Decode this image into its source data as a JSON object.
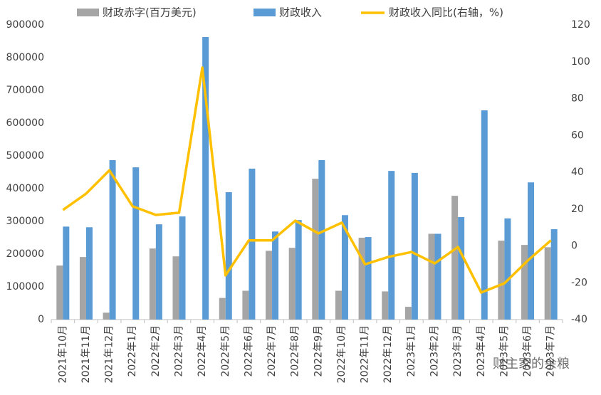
{
  "chart_data": {
    "type": "bar_line",
    "categories": [
      "2021年10月",
      "2021年11月",
      "2021年12月",
      "2022年1月",
      "2022年2月",
      "2022年3月",
      "2022年4月",
      "2022年5月",
      "2022年6月",
      "2022年7月",
      "2022年8月",
      "2022年9月",
      "2022年10月",
      "2022年11月",
      "2022年12月",
      "2023年1月",
      "2023年2月",
      "2023年3月",
      "2023年4月",
      "2023年5月",
      "2023年6月",
      "2023年7月"
    ],
    "series": [
      {
        "name": "财政赤字(百万美元)",
        "color": "#a5a5a5",
        "type": "bar",
        "values": [
          165000,
          191000,
          21000,
          null,
          217000,
          193000,
          null,
          66000,
          88000,
          210000,
          219000,
          430000,
          88000,
          250000,
          86000,
          39000,
          262000,
          378000,
          null,
          241000,
          228000,
          221000
        ]
      },
      {
        "name": "财政收入",
        "color": "#5b9bd5",
        "type": "bar",
        "values": [
          284000,
          282000,
          487000,
          465000,
          291000,
          315000,
          863000,
          389000,
          461000,
          269000,
          304000,
          487000,
          319000,
          252000,
          454000,
          448000,
          262000,
          313000,
          639000,
          309000,
          419000,
          276000
        ]
      },
      {
        "name": "财政收入同比(右轴，%)",
        "color": "#ffc000",
        "type": "line",
        "axis": "y2",
        "values": [
          19.5,
          28.4,
          41,
          21.5,
          16.8,
          18,
          96.8,
          -16,
          3,
          3,
          13.7,
          6.8,
          12.6,
          -10,
          -6,
          -3.3,
          -9.5,
          -0.6,
          -25.3,
          -20.3,
          -8,
          3
        ]
      }
    ],
    "ylim": [
      0,
      900000
    ],
    "yticks": [
      0,
      100000,
      200000,
      300000,
      400000,
      500000,
      600000,
      700000,
      800000,
      900000
    ],
    "y2lim": [
      -40,
      120
    ],
    "y2ticks": [
      -40,
      -20,
      0,
      20,
      40,
      60,
      80,
      100,
      120
    ],
    "grid": false,
    "watermark": "财主家的余粮"
  }
}
